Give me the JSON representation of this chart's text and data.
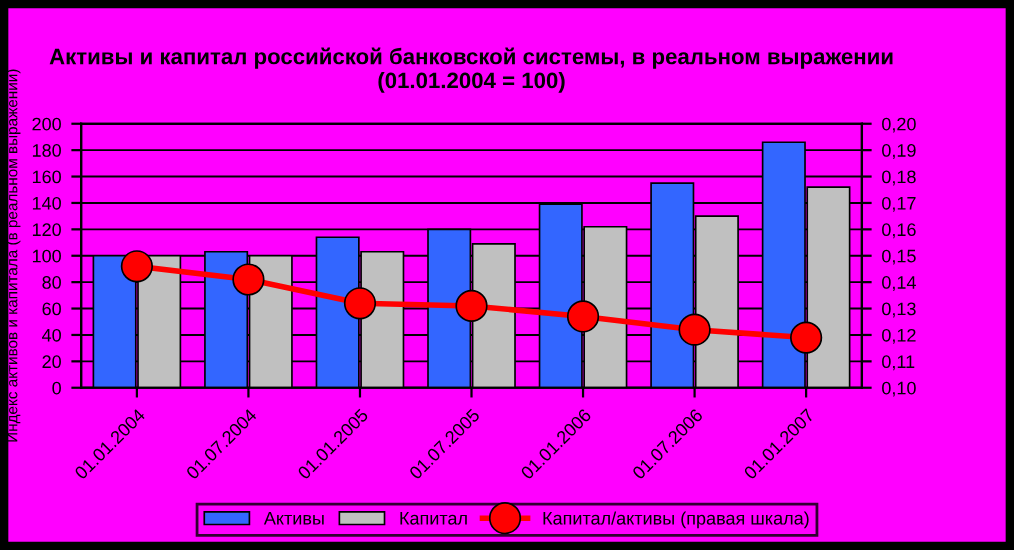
{
  "chart_data": {
    "type": "bar",
    "title": "Активы и капитал российской банковской системы, в реальном выражении (01.01.2004 = 100)",
    "ylabel": "Индекс активов и капитала (в реальном выражении)",
    "categories": [
      "01.01.2004",
      "01.07.2004",
      "01.01.2005",
      "01.07.2005",
      "01.01.2006",
      "01.07.2006",
      "01.01.2007"
    ],
    "series": [
      {
        "name": "Активы",
        "color": "#3366ff",
        "values": [
          100,
          103,
          114,
          120,
          139,
          155,
          186
        ]
      },
      {
        "name": "Капитал",
        "color": "#c0c0c0",
        "values": [
          100,
          100,
          103,
          109,
          122,
          130,
          152
        ]
      },
      {
        "name": "Капитал/активы (правая шкала)",
        "type": "line",
        "axis": "y2",
        "color": "#ff0000",
        "marker": "circle",
        "values": [
          0.146,
          0.141,
          0.132,
          0.131,
          0.127,
          0.122,
          0.119
        ]
      }
    ],
    "ylim": [
      0,
      200
    ],
    "yticks": [
      0,
      20,
      40,
      60,
      80,
      100,
      120,
      140,
      160,
      180,
      200
    ],
    "y2lim": [
      0.1,
      0.2
    ],
    "y2ticks": [
      {
        "value": 0.1,
        "label": "0,10"
      },
      {
        "value": 0.11,
        "label": "0,11"
      },
      {
        "value": 0.12,
        "label": "0,12"
      },
      {
        "value": 0.13,
        "label": "0,13"
      },
      {
        "value": 0.14,
        "label": "0,14"
      },
      {
        "value": 0.15,
        "label": "0,15"
      },
      {
        "value": 0.16,
        "label": "0,16"
      },
      {
        "value": 0.17,
        "label": "0,17"
      },
      {
        "value": 0.18,
        "label": "0,18"
      },
      {
        "value": 0.19,
        "label": "0,19"
      },
      {
        "value": 0.2,
        "label": "0,20"
      }
    ],
    "grid": "y",
    "legend": "bottom"
  }
}
